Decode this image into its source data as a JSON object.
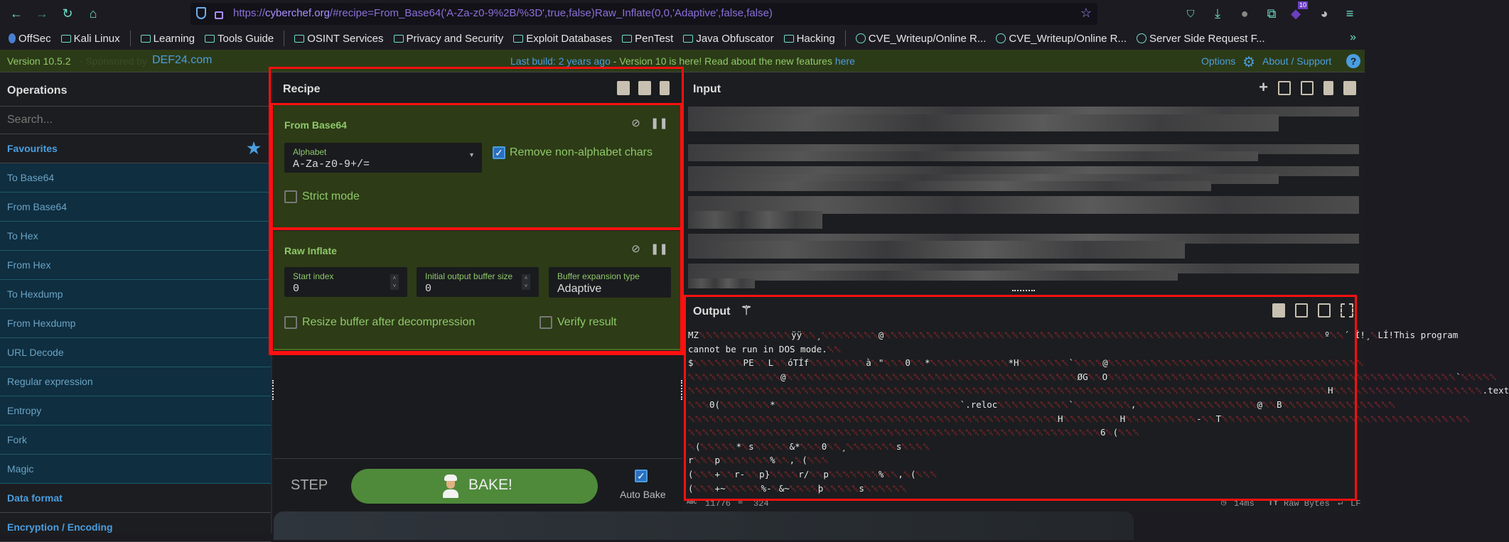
{
  "browser": {
    "url_prefix": "https://",
    "url_host": "cyberchef.org",
    "url_rest": "/#recipe=From_Base64('A-Za-z0-9%2B/%3D',true,false)Raw_Inflate(0,0,'Adaptive',false,false)",
    "extension_badge": "10",
    "bookmarks": [
      {
        "label": "OffSec",
        "icon": "offsec-logo-icon"
      },
      {
        "label": "Kali Linux",
        "icon": "folder-icon"
      },
      {
        "sep": true
      },
      {
        "label": "Learning",
        "icon": "folder-icon"
      },
      {
        "label": "Tools Guide",
        "icon": "folder-icon"
      },
      {
        "sep": true
      },
      {
        "label": "OSINT Services",
        "icon": "folder-icon"
      },
      {
        "label": "Privacy and Security",
        "icon": "folder-icon"
      },
      {
        "label": "Exploit Databases",
        "icon": "folder-icon"
      },
      {
        "label": "PenTest",
        "icon": "folder-icon"
      },
      {
        "label": "Java Obfuscator",
        "icon": "folder-icon"
      },
      {
        "label": "Hacking",
        "icon": "folder-icon"
      },
      {
        "sep": true
      },
      {
        "label": "CVE_Writeup/Online R...",
        "icon": "globe-icon"
      },
      {
        "label": "CVE_Writeup/Online R...",
        "icon": "globe-icon"
      },
      {
        "label": "Server Side Request F...",
        "icon": "globe-icon"
      }
    ]
  },
  "banner": {
    "version": "Version 10.5.2",
    "sponsored": "- Sponsored by",
    "sponsor": "DEF24.com",
    "last_build": "Last build: 2 years ago",
    "notice": " - Version 10 is here! Read about the new features ",
    "here": "here",
    "options": "Options",
    "about": "About / Support"
  },
  "operations": {
    "title": "Operations",
    "search_placeholder": "Search...",
    "favourites": "Favourites",
    "items": [
      "To Base64",
      "From Base64",
      "To Hex",
      "From Hex",
      "To Hexdump",
      "From Hexdump",
      "URL Decode",
      "Regular expression",
      "Entropy",
      "Fork",
      "Magic"
    ],
    "categories": [
      "Data format",
      "Encryption / Encoding"
    ]
  },
  "recipe": {
    "title": "Recipe",
    "from_base64": {
      "title": "From Base64",
      "alphabet_label": "Alphabet",
      "alphabet_value": "A-Za-z0-9+/=",
      "remove_non_alphabet": "Remove non-alphabet chars",
      "remove_non_alphabet_checked": true,
      "strict_mode": "Strict mode",
      "strict_mode_checked": false
    },
    "raw_inflate": {
      "title": "Raw Inflate",
      "start_index_label": "Start index",
      "start_index": "0",
      "buffer_size_label": "Initial output buffer size",
      "buffer_size": "0",
      "expansion_label": "Buffer expansion type",
      "expansion": "Adaptive",
      "resize": "Resize buffer after decompression",
      "resize_checked": false,
      "verify": "Verify result",
      "verify_checked": false
    },
    "step": "STEP",
    "bake": "BAKE!",
    "auto_bake": "Auto Bake",
    "auto_bake_checked": true
  },
  "input": {
    "title": "Input"
  },
  "output": {
    "title": "Output",
    "lines": [
      "MZ␀␀␀␀␀␀␀␀␀␀␀␀␀ÿÿ␀␀¸␀␀␀␀␀␀␀␀@␀␀␀␀␀␀␀␀␀␀␀␀␀␀␀␀␀␀␀␀␀␀␀␀␀␀␀␀␀␀␀␀␀␀␀␀␀␀␀␀␀␀␀␀␀␀␀␀␀␀␀␀␀␀␀␀␀␀␀␀␀␀º␀␀´ Í!¸␀LÍ!This program",
      "cannot be run in DOS mode.␀␀",
      "$␀␀␀␀␀␀␀PE␀␀L␀␀óTÍf␀␀␀␀␀␀␀␀à␀\"␀␀␀0␀␀*␀␀␀␀␀␀␀␀␀␀␀*H␀␀␀␀␀␀␀`␀␀␀␀@␀␀␀␀␀␀␀␀␀␀␀␀␀␀␀␀␀␀␀␀␀␀␀␀␀␀␀␀␀␀␀␀␀␀␀␀",
      "␀␀␀␀␀␀␀␀␀␀␀␀␀@␀␀␀␀␀␀␀␀␀␀␀␀␀␀␀␀␀␀␀␀␀␀␀␀␀␀␀␀␀␀␀␀␀␀␀␀␀␀␀␀␀ØG␀␀O␀␀␀␀␀␀␀␀␀␀␀␀␀␀␀␀␀␀␀␀␀␀␀␀␀␀␀␀␀␀␀␀␀␀␀␀␀␀␀␀␀␀␀␀␀␀␀␀␀`␀␀␀␀␀",
      "␀␀␀␀␀␀␀␀␀␀␀␀␀␀␀␀␀␀␀␀␀␀␀␀␀␀␀␀␀␀␀␀␀␀␀␀␀␀␀␀␀␀␀␀␀␀␀␀␀␀␀␀␀␀␀␀␀␀␀␀␀␀␀␀␀␀␀␀␀␀␀␀␀␀␀␀␀␀␀␀␀␀␀␀␀␀␀␀␀␀H␀␀␀␀␀␀␀␀␀␀␀␀␀␀␀␀␀␀␀␀␀.text",
      "␀␀␀0(␀␀␀␀␀␀␀*␀␀␀␀␀␀␀␀␀␀␀␀␀␀␀␀␀␀␀␀␀␀␀␀␀␀`.reloc␀␀␀␀␀␀␀␀␀␀`␀␀␀␀␀␀␀␀,␀␀␀␀␀␀␀␀␀␀␀␀␀␀␀␀␀@␀␀B␀␀␀␀␀␀␀␀␀␀␀␀␀␀␀␀",
      "␀␀␀␀␀␀␀␀␀␀␀␀␀␀␀␀␀␀␀␀␀␀␀␀␀␀␀␀␀␀␀␀␀␀␀␀␀␀␀␀␀␀␀␀␀␀␀␀␀␀␀␀H␀␀␀␀␀␀␀␀H␀␀␀␀␀␀␀␀␀␀-␀␀T␀␀␀␀␀␀␀␀␀␀␀␀␀␀␀␀␀␀␀␀␀␀␀␀␀␀␀␀␀␀␀␀␀␀␀",
      "␀␀␀␀␀␀␀␀␀␀␀␀␀␀␀␀␀␀␀␀␀␀␀␀␀␀␀␀␀␀␀␀␀␀␀␀␀␀␀␀␀␀␀␀␀␀␀␀␀␀␀␀␀␀␀␀␀␀6␀(␀␀␀",
      "␀(␀␀␀␀␀*␀s␀␀␀␀␀&*␀␀␀0␀␀¸␀␀␀␀␀␀␀s␀␀␀␀",
      "r␀␀␀p␀␀␀␀␀␀␀%␀␀,␀(␀␀␀",
      "(␀␀␀+␀␀r-␀␀p}␀␀␀␀r/␀␀p␀␀␀␀␀␀␀%␀␀,␀(␀␀␀",
      "(␀␀␀+~␀␀␀␀␀%-␀&~␀␀␀␀þ␀␀␀␀␀s␀␀␀␀␀␀"
    ],
    "stats": {
      "length": "11776",
      "lines": "324",
      "time": "14ms",
      "encoding": "Raw Bytes",
      "eol": "LF"
    }
  },
  "colors": {
    "highlight": "#ff1010",
    "recipe_block": "#2d3b16",
    "favourite_blue": "#4a9ee0",
    "bake_green": "#4e8a3a"
  }
}
